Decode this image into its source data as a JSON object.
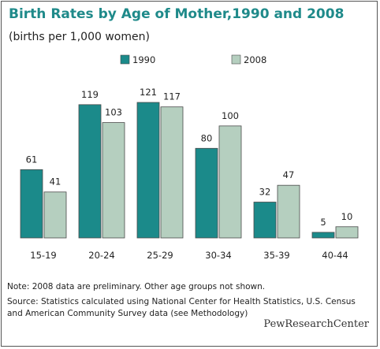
{
  "title": "Birth Rates by Age of Mother,1990 and 2008",
  "subtitle": "(births per 1,000 women)",
  "note": "Note: 2008 data are preliminary. Other age groups not shown.",
  "source": "Source: Statistics calculated using National Center for Health Statistics, U.S. Census and American Community Survey data (see Methodology)",
  "brand": "PewResearchCenter",
  "colors": {
    "s1990": "#1b8a8a",
    "s2008": "#b5cfbf",
    "title": "#1f8a8a"
  },
  "chart_data": {
    "type": "bar",
    "title": "Birth Rates by Age of Mother,1990 and 2008",
    "subtitle": "(births per 1,000 women)",
    "categories": [
      "15-19",
      "20-24",
      "25-29",
      "30-34",
      "35-39",
      "40-44"
    ],
    "series": [
      {
        "name": "1990",
        "values": [
          61,
          119,
          121,
          80,
          32,
          5
        ]
      },
      {
        "name": "2008",
        "values": [
          41,
          103,
          117,
          100,
          47,
          10
        ]
      }
    ],
    "ylim": [
      0,
      121
    ],
    "grid": false,
    "legend": "top-center",
    "data_labels": true
  }
}
